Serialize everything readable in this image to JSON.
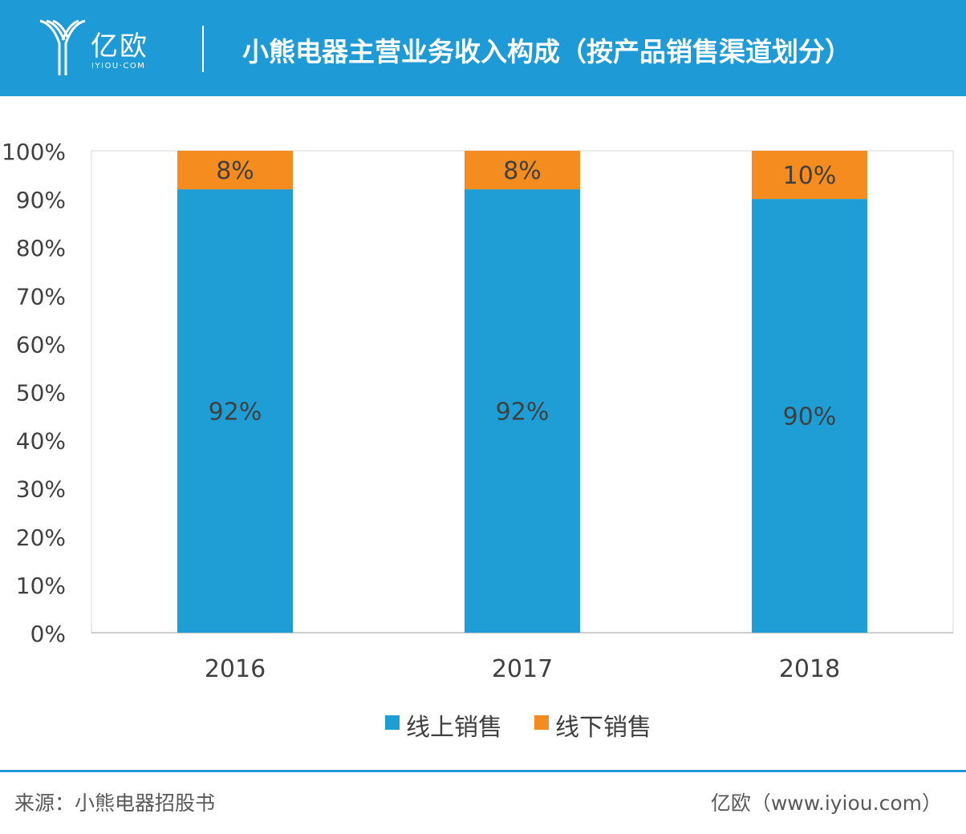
{
  "header": {
    "logo_text": "亿欧",
    "logo_sub": "IYIOU·COM",
    "title": "小熊电器主营业务收入构成（按产品销售渠道划分）"
  },
  "colors": {
    "header_bg": "#1e9ad6",
    "online": "#1e9ed4",
    "offline": "#f58c1f"
  },
  "chart_data": {
    "type": "bar",
    "stacked": true,
    "categories": [
      "2016",
      "2017",
      "2018"
    ],
    "series": [
      {
        "name": "线上销售",
        "values": [
          92,
          92,
          90
        ],
        "labels": [
          "92%",
          "92%",
          "90%"
        ],
        "color": "#1e9ed4"
      },
      {
        "name": "线下销售",
        "values": [
          8,
          8,
          10
        ],
        "labels": [
          "8%",
          "8%",
          "10%"
        ],
        "color": "#f58c1f"
      }
    ],
    "ylim": [
      0,
      100
    ],
    "yticks": [
      "0%",
      "10%",
      "20%",
      "30%",
      "40%",
      "50%",
      "60%",
      "70%",
      "80%",
      "90%",
      "100%"
    ],
    "grid": false,
    "legend": "bottom"
  },
  "footer": {
    "source": "来源：小熊电器招股书",
    "credit": "亿欧（www.iyiou.com）"
  }
}
